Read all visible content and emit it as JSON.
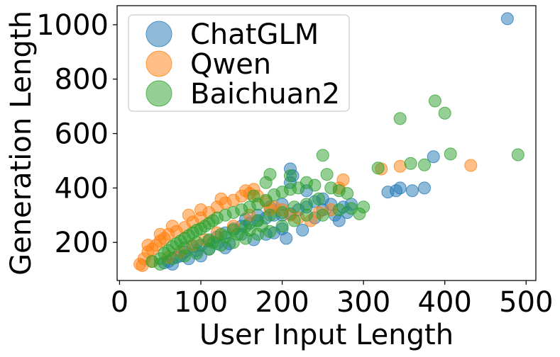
{
  "chart_data": {
    "type": "scatter",
    "title": "",
    "xlabel": "User Input Length",
    "ylabel": "Generation Length",
    "xlim": [
      -3,
      512
    ],
    "ylim": [
      60,
      1070
    ],
    "xticks": [
      0,
      100,
      200,
      300,
      400,
      500
    ],
    "yticks": [
      200,
      400,
      600,
      800,
      1000
    ],
    "grid": false,
    "legend": "top-left",
    "series": [
      {
        "name": "ChatGLM",
        "color": "#1f77b4",
        "points": [
          [
            60,
            130
          ],
          [
            70,
            145
          ],
          [
            80,
            165
          ],
          [
            90,
            185
          ],
          [
            100,
            190
          ],
          [
            110,
            205
          ],
          [
            120,
            220
          ],
          [
            130,
            235
          ],
          [
            140,
            250
          ],
          [
            150,
            260
          ],
          [
            160,
            270
          ],
          [
            170,
            280
          ],
          [
            180,
            290
          ],
          [
            190,
            300
          ],
          [
            200,
            300
          ],
          [
            210,
            305
          ],
          [
            220,
            320
          ],
          [
            230,
            330
          ],
          [
            240,
            350
          ],
          [
            250,
            360
          ],
          [
            260,
            340
          ],
          [
            275,
            330
          ],
          [
            285,
            340
          ],
          [
            210,
            470
          ],
          [
            213,
            445
          ],
          [
            210,
            420
          ],
          [
            230,
            390
          ],
          [
            250,
            320
          ],
          [
            265,
            300
          ],
          [
            280,
            310
          ],
          [
            330,
            385
          ],
          [
            340,
            390
          ],
          [
            345,
            400
          ],
          [
            360,
            390
          ],
          [
            375,
            400
          ],
          [
            386,
            515
          ],
          [
            477,
            1022
          ],
          [
            200,
            250
          ],
          [
            190,
            235
          ],
          [
            150,
            230
          ],
          [
            120,
            195
          ],
          [
            95,
            170
          ],
          [
            75,
            150
          ],
          [
            65,
            120
          ],
          [
            85,
            140
          ],
          [
            110,
            175
          ],
          [
            135,
            195
          ],
          [
            165,
            210
          ],
          [
            180,
            230
          ],
          [
            205,
            215
          ],
          [
            225,
            245
          ],
          [
            155,
            285
          ],
          [
            185,
            330
          ],
          [
            200,
            340
          ],
          [
            170,
            300
          ],
          [
            55,
            125
          ],
          [
            240,
            290
          ],
          [
            270,
            280
          ],
          [
            100,
            150
          ],
          [
            130,
            180
          ]
        ]
      },
      {
        "name": "Qwen",
        "color": "#ff7f0e",
        "points": [
          [
            25,
            120
          ],
          [
            30,
            140
          ],
          [
            35,
            165
          ],
          [
            40,
            175
          ],
          [
            45,
            190
          ],
          [
            50,
            205
          ],
          [
            55,
            215
          ],
          [
            60,
            230
          ],
          [
            70,
            240
          ],
          [
            80,
            255
          ],
          [
            90,
            275
          ],
          [
            100,
            290
          ],
          [
            110,
            310
          ],
          [
            120,
            330
          ],
          [
            130,
            345
          ],
          [
            140,
            355
          ],
          [
            150,
            370
          ],
          [
            160,
            380
          ],
          [
            170,
            370
          ],
          [
            180,
            350
          ],
          [
            190,
            330
          ],
          [
            200,
            320
          ],
          [
            210,
            300
          ],
          [
            220,
            290
          ],
          [
            235,
            280
          ],
          [
            245,
            310
          ],
          [
            260,
            320
          ],
          [
            270,
            400
          ],
          [
            275,
            430
          ],
          [
            322,
            470
          ],
          [
            345,
            480
          ],
          [
            432,
            483
          ],
          [
            155,
            390
          ],
          [
            165,
            395
          ],
          [
            125,
            360
          ],
          [
            100,
            320
          ],
          [
            85,
            300
          ],
          [
            65,
            260
          ],
          [
            50,
            230
          ],
          [
            35,
            190
          ],
          [
            40,
            130
          ],
          [
            28,
            115
          ],
          [
            60,
            145
          ],
          [
            75,
            165
          ],
          [
            90,
            190
          ],
          [
            105,
            210
          ],
          [
            120,
            235
          ],
          [
            140,
            260
          ],
          [
            160,
            300
          ],
          [
            185,
            320
          ]
        ]
      },
      {
        "name": "Baichuan2",
        "color": "#2ca02c",
        "points": [
          [
            40,
            130
          ],
          [
            50,
            140
          ],
          [
            55,
            160
          ],
          [
            60,
            170
          ],
          [
            65,
            185
          ],
          [
            70,
            195
          ],
          [
            75,
            205
          ],
          [
            80,
            215
          ],
          [
            85,
            225
          ],
          [
            90,
            235
          ],
          [
            95,
            245
          ],
          [
            100,
            250
          ],
          [
            105,
            260
          ],
          [
            110,
            270
          ],
          [
            115,
            280
          ],
          [
            120,
            290
          ],
          [
            130,
            300
          ],
          [
            140,
            310
          ],
          [
            150,
            320
          ],
          [
            160,
            330
          ],
          [
            170,
            340
          ],
          [
            180,
            355
          ],
          [
            190,
            375
          ],
          [
            200,
            385
          ],
          [
            210,
            395
          ],
          [
            220,
            400
          ],
          [
            230,
            420
          ],
          [
            240,
            410
          ],
          [
            250,
            520
          ],
          [
            255,
            450
          ],
          [
            260,
            400
          ],
          [
            270,
            390
          ],
          [
            280,
            380
          ],
          [
            210,
            445
          ],
          [
            180,
            420
          ],
          [
            185,
            450
          ],
          [
            165,
            370
          ],
          [
            250,
            300
          ],
          [
            270,
            320
          ],
          [
            285,
            325
          ],
          [
            300,
            330
          ],
          [
            318,
            473
          ],
          [
            345,
            655
          ],
          [
            358,
            490
          ],
          [
            375,
            485
          ],
          [
            388,
            720
          ],
          [
            400,
            675
          ],
          [
            407,
            525
          ],
          [
            490,
            522
          ],
          [
            295,
            305
          ],
          [
            80,
            180
          ],
          [
            95,
            200
          ],
          [
            110,
            210
          ],
          [
            125,
            230
          ],
          [
            140,
            245
          ],
          [
            155,
            260
          ],
          [
            170,
            280
          ],
          [
            185,
            300
          ],
          [
            200,
            310
          ],
          [
            215,
            330
          ],
          [
            230,
            340
          ],
          [
            245,
            360
          ],
          [
            230,
            300
          ],
          [
            215,
            280
          ],
          [
            200,
            260
          ],
          [
            185,
            240
          ],
          [
            170,
            230
          ],
          [
            155,
            215
          ],
          [
            140,
            200
          ],
          [
            125,
            190
          ],
          [
            110,
            175
          ],
          [
            95,
            160
          ],
          [
            80,
            150
          ],
          [
            65,
            140
          ],
          [
            50,
            120
          ],
          [
            175,
            260
          ],
          [
            160,
            245
          ],
          [
            145,
            230
          ],
          [
            130,
            220
          ],
          [
            115,
            200
          ]
        ]
      }
    ]
  }
}
